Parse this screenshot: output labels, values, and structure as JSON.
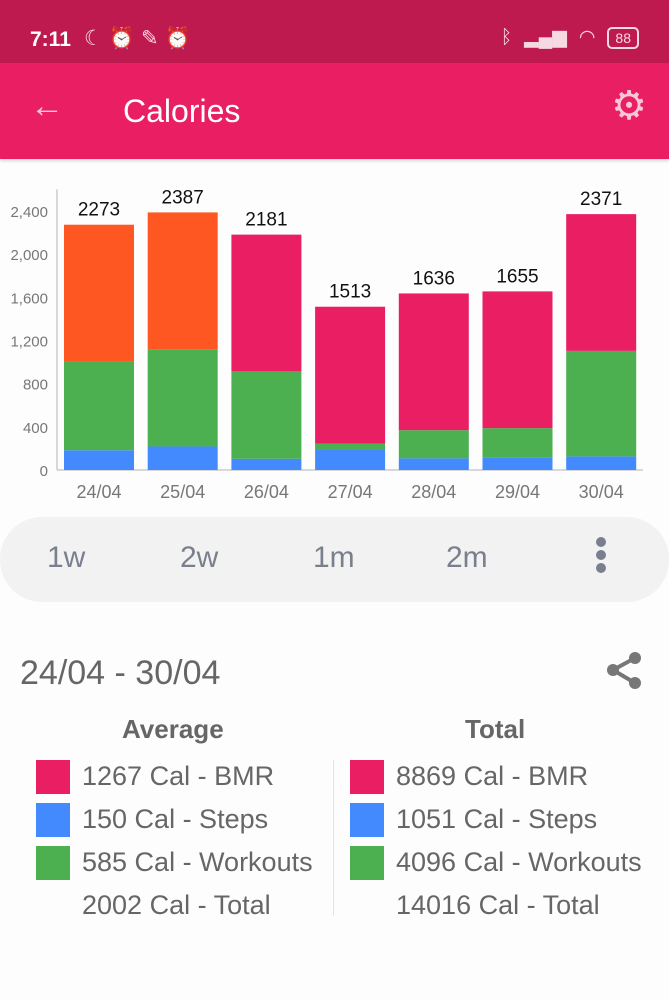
{
  "status_bar": {
    "time": "7:11",
    "battery": "88"
  },
  "app_bar": {
    "title": "Calories"
  },
  "colors": {
    "bmr": "#E91E63",
    "bmr_alt": "#FF5722",
    "steps": "#448AFF",
    "workouts": "#4CAF50",
    "status_bar": "#BE1A4F",
    "app_bar": "#E91E63"
  },
  "chart_data": {
    "type": "bar",
    "stacked": true,
    "categories": [
      "24/04",
      "25/04",
      "26/04",
      "27/04",
      "28/04",
      "29/04",
      "30/04"
    ],
    "series": [
      {
        "name": "Steps",
        "color": "#448AFF",
        "values": [
          183,
          218,
          104,
          194,
          108,
          118,
          126
        ]
      },
      {
        "name": "Workouts",
        "color": "#4CAF50",
        "values": [
          823,
          902,
          810,
          52,
          261,
          270,
          978
        ]
      },
      {
        "name": "BMR",
        "color": "#E91E63",
        "values": [
          1267,
          1267,
          1267,
          1267,
          1267,
          1267,
          1267
        ]
      }
    ],
    "bmr_colors": [
      "#FF5722",
      "#FF5722",
      "#E91E63",
      "#E91E63",
      "#E91E63",
      "#E91E63",
      "#E91E63"
    ],
    "totals": [
      2273,
      2387,
      2181,
      1513,
      1636,
      1655,
      2371
    ],
    "yticks": [
      0,
      400,
      800,
      1200,
      1600,
      2000,
      2400
    ],
    "ytick_labels": [
      "0",
      "400",
      "800",
      "1,200",
      "1,600",
      "2,000",
      "2,400"
    ],
    "ylim": [
      0,
      2600
    ]
  },
  "range_options": [
    "1w",
    "2w",
    "1m",
    "2m"
  ],
  "summary": {
    "period": "24/04 - 30/04",
    "average": {
      "title": "Average",
      "bmr": "1267 Cal - BMR",
      "steps": "150 Cal - Steps",
      "workouts": "585 Cal - Workouts",
      "total": "2002 Cal - Total"
    },
    "total": {
      "title": "Total",
      "bmr": "8869 Cal - BMR",
      "steps": "1051 Cal - Steps",
      "workouts": "4096 Cal - Workouts",
      "total": "14016 Cal - Total"
    }
  }
}
